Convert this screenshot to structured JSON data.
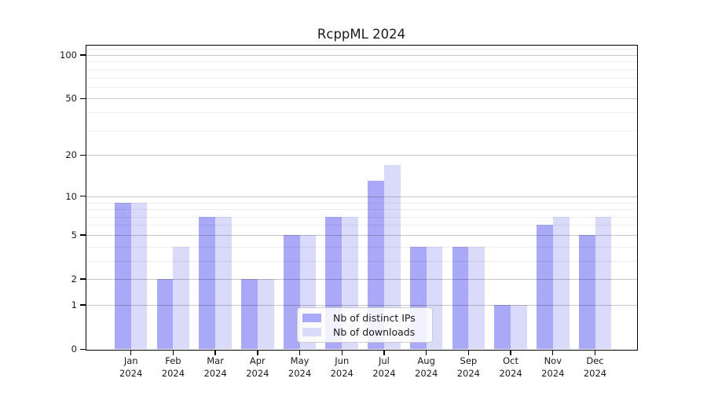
{
  "chart_data": {
    "type": "bar",
    "title": "RcppML 2024",
    "y_scale": "log1p",
    "ylim": [
      0,
      116
    ],
    "grid": "horizontal",
    "legend_position": "lower center inside",
    "y_ticks": [
      100,
      50,
      20,
      10,
      5,
      2,
      1,
      0
    ],
    "y_minor_ticks": [
      110,
      90,
      80,
      70,
      60,
      40,
      30,
      9,
      8,
      7,
      6,
      4,
      3
    ],
    "x_ticks": [
      {
        "month": "Jan",
        "year": "2024"
      },
      {
        "month": "Feb",
        "year": "2024"
      },
      {
        "month": "Mar",
        "year": "2024"
      },
      {
        "month": "Apr",
        "year": "2024"
      },
      {
        "month": "May",
        "year": "2024"
      },
      {
        "month": "Jun",
        "year": "2024"
      },
      {
        "month": "Jul",
        "year": "2024"
      },
      {
        "month": "Aug",
        "year": "2024"
      },
      {
        "month": "Sep",
        "year": "2024"
      },
      {
        "month": "Oct",
        "year": "2024"
      },
      {
        "month": "Nov",
        "year": "2024"
      },
      {
        "month": "Dec",
        "year": "2024"
      }
    ],
    "series": [
      {
        "name": "Nb of distinct IPs",
        "color": "#a9a9f8",
        "values": [
          9,
          2,
          7,
          2,
          5,
          7,
          13,
          4,
          4,
          1,
          6,
          5
        ]
      },
      {
        "name": "Nb of downloads",
        "color": "#dadafb",
        "values": [
          9,
          4,
          7,
          2,
          5,
          7,
          17,
          4,
          4,
          1,
          7,
          7
        ]
      }
    ]
  }
}
